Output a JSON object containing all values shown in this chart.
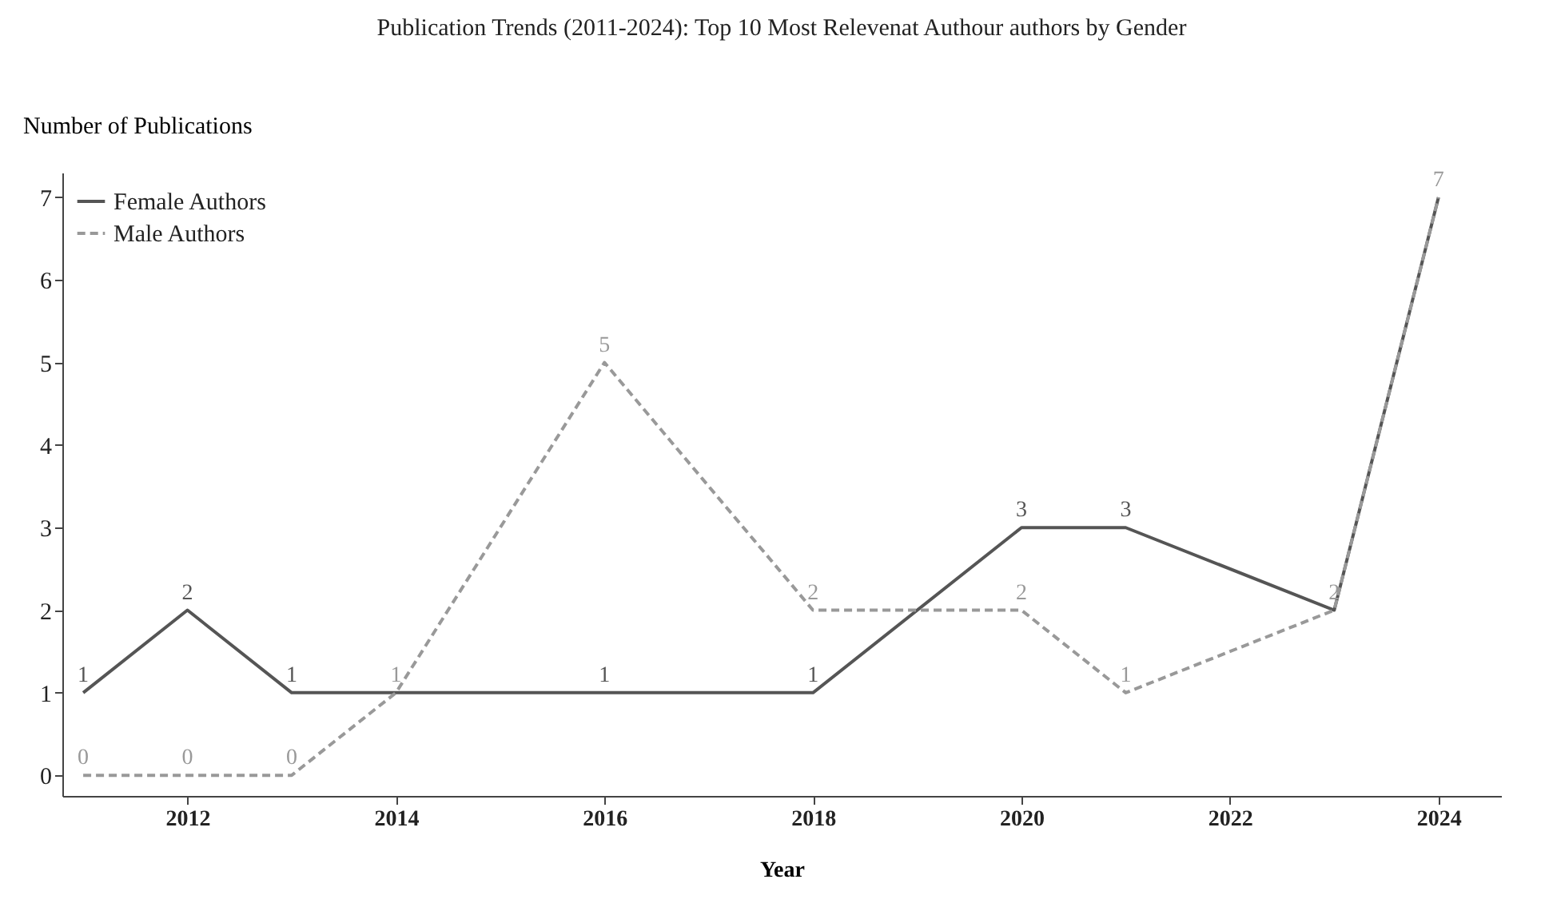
{
  "chart_data": {
    "type": "line",
    "title": "Publication Trends (2011-2024): Top 10 Most Relevenat Authour authors by Gender",
    "xlabel": "Year",
    "ylabel": "Number of Publications",
    "xlim": [
      2010.8,
      2024.6
    ],
    "xticks": [
      2012,
      2014,
      2016,
      2018,
      2020,
      2022,
      2024
    ],
    "ylim": [
      -0.25,
      7.3
    ],
    "yticks": [
      0,
      1,
      2,
      3,
      4,
      5,
      6,
      7
    ],
    "grid": false,
    "legend": "top left",
    "marker": "none",
    "series": [
      {
        "name": "Female Authors",
        "color": "#555555",
        "line_style": "solid",
        "x": [
          2011,
          2012,
          2013,
          2016,
          2018,
          2020,
          2021,
          2023,
          2024
        ],
        "values": [
          1,
          2,
          1,
          1,
          1,
          3,
          3,
          2,
          7
        ],
        "value_labels": [
          "1",
          "2",
          "1",
          "1",
          "1",
          "3",
          "3",
          null,
          null
        ]
      },
      {
        "name": "Male Authors",
        "color": "#999999",
        "line_style": "dashed",
        "x": [
          2011,
          2012,
          2013,
          2014,
          2016,
          2018,
          2020,
          2021,
          2023,
          2024
        ],
        "values": [
          0,
          0,
          0,
          1,
          5,
          2,
          2,
          1,
          2,
          7
        ],
        "value_labels": [
          "0",
          "0",
          "0",
          "1",
          "5",
          "2",
          "2",
          "1",
          "2",
          "7"
        ]
      }
    ]
  }
}
